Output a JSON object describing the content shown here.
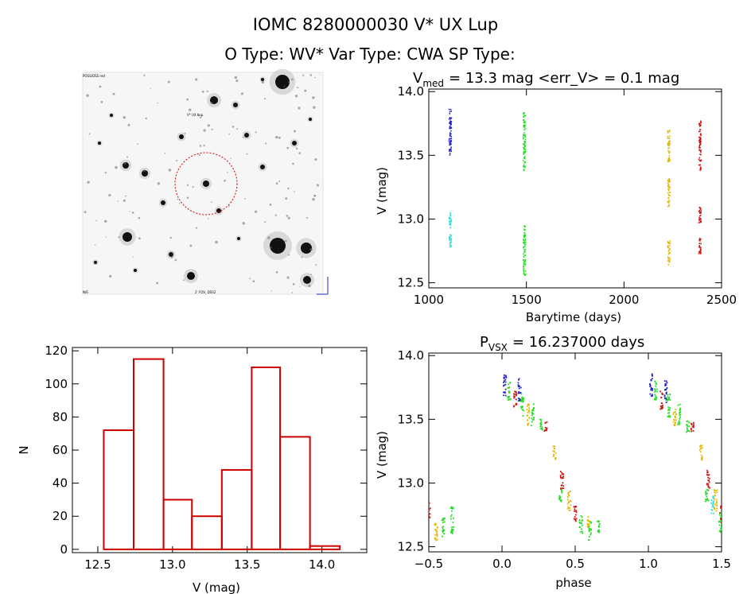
{
  "header": {
    "title": "IOMC 8280000030    V* UX Lup",
    "subtitle": "O Type: WV*  Var Type: CWA  SP Type:"
  },
  "image_panel": {
    "label_top_left": "POSS/DSS red",
    "label_target": "V* UX Lup",
    "label_bottom_left": "N/E",
    "label_bottom_center": "2' FOV, DSS2"
  },
  "colors": {
    "axis": "#000000",
    "histogram": "#cc0000",
    "season1": "#2222cc",
    "season2": "#22dd22",
    "season3": "#e6b800",
    "season4": "#cc1111",
    "cyan": "#33dddd"
  },
  "chart_data": [
    {
      "id": "lightcurve",
      "type": "scatter",
      "title_prefix": "V",
      "title_sub": "med",
      "title_rest": "= 13.3 mag <err_V> = 0.1 mag",
      "xlabel": "Barytime (days)",
      "ylabel": "V (mag)",
      "xlim": [
        1000,
        2500
      ],
      "ylim": [
        14.02,
        12.46
      ],
      "xticks": [
        "1000",
        "1500",
        "2000",
        "2500"
      ],
      "yticks": [
        "12.5",
        "13.0",
        "13.5",
        "14.0"
      ],
      "series": [
        {
          "name": "cyan",
          "x_center": 1110,
          "y_ranges": [
            [
              12.77,
              12.88
            ],
            [
              12.93,
              13.05
            ]
          ]
        },
        {
          "name": "blue",
          "x_center": 1110,
          "y_ranges": [
            [
              13.5,
              13.87
            ]
          ]
        },
        {
          "name": "green",
          "x_center": 1490,
          "y_ranges": [
            [
              12.55,
              12.95
            ],
            [
              13.38,
              13.85
            ]
          ]
        },
        {
          "name": "yellow",
          "x_center": 2230,
          "y_ranges": [
            [
              12.64,
              12.83
            ],
            [
              13.08,
              13.32
            ],
            [
              13.45,
              13.72
            ]
          ]
        },
        {
          "name": "red",
          "x_center": 2390,
          "y_ranges": [
            [
              12.72,
              12.85
            ],
            [
              12.97,
              13.1
            ],
            [
              13.38,
              13.77
            ]
          ]
        }
      ]
    },
    {
      "id": "histogram",
      "type": "bar",
      "xlabel": "V (mag)",
      "ylabel": "N",
      "xlim": [
        12.33,
        14.3
      ],
      "ylim": [
        -2,
        122
      ],
      "xticks": [
        "12.5",
        "13.0",
        "13.5",
        "14.0"
      ],
      "yticks": [
        "0",
        "20",
        "40",
        "60",
        "80",
        "100",
        "120"
      ],
      "bin_edges": [
        12.54,
        12.74,
        12.94,
        13.13,
        13.33,
        13.53,
        13.72,
        13.92,
        14.12
      ],
      "values": [
        72,
        115,
        30,
        20,
        48,
        110,
        68,
        2
      ]
    },
    {
      "id": "phased",
      "type": "scatter",
      "title_prefix": "P",
      "title_sub": "VSX",
      "title_rest": "= 16.237000 days",
      "xlabel": "phase",
      "ylabel": "V (mag)",
      "xlim": [
        -0.5,
        1.5
      ],
      "ylim": [
        14.02,
        12.46
      ],
      "xticks": [
        "−0.5",
        "0.0",
        "0.5",
        "1.0",
        "1.5"
      ],
      "yticks": [
        "12.5",
        "13.0",
        "13.5",
        "14.0"
      ],
      "clusters": [
        {
          "phase": -0.45,
          "ymin": 12.55,
          "ymax": 12.73,
          "color": "yellow"
        },
        {
          "phase": -0.4,
          "ymin": 12.55,
          "ymax": 12.73,
          "color": "green"
        },
        {
          "phase": -0.34,
          "ymin": 12.6,
          "ymax": 12.82,
          "color": "green"
        },
        {
          "phase": -0.5,
          "ymin": 12.72,
          "ymax": 12.85,
          "color": "red"
        },
        {
          "phase": 0.02,
          "ymin": 13.68,
          "ymax": 13.86,
          "color": "blue"
        },
        {
          "phase": 0.05,
          "ymin": 13.65,
          "ymax": 13.8,
          "color": "green"
        },
        {
          "phase": 0.09,
          "ymin": 13.58,
          "ymax": 13.72,
          "color": "red"
        },
        {
          "phase": 0.12,
          "ymin": 13.63,
          "ymax": 13.82,
          "color": "blue"
        },
        {
          "phase": 0.14,
          "ymin": 13.5,
          "ymax": 13.7,
          "color": "green"
        },
        {
          "phase": 0.18,
          "ymin": 13.45,
          "ymax": 13.62,
          "color": "yellow"
        },
        {
          "phase": 0.21,
          "ymin": 13.45,
          "ymax": 13.62,
          "color": "green"
        },
        {
          "phase": 0.27,
          "ymin": 13.4,
          "ymax": 13.5,
          "color": "green"
        },
        {
          "phase": 0.3,
          "ymin": 13.4,
          "ymax": 13.48,
          "color": "red"
        },
        {
          "phase": 0.36,
          "ymin": 13.18,
          "ymax": 13.3,
          "color": "yellow"
        },
        {
          "phase": 0.41,
          "ymin": 12.93,
          "ymax": 13.1,
          "color": "red"
        },
        {
          "phase": 0.4,
          "ymin": 12.85,
          "ymax": 12.95,
          "color": "green"
        },
        {
          "phase": 0.46,
          "ymin": 12.78,
          "ymax": 12.95,
          "color": "yellow"
        },
        {
          "phase": 0.5,
          "ymin": 12.68,
          "ymax": 12.82,
          "color": "red"
        },
        {
          "phase": 0.54,
          "ymin": 12.6,
          "ymax": 12.75,
          "color": "green"
        },
        {
          "phase": 0.59,
          "ymin": 12.65,
          "ymax": 12.75,
          "color": "yellow"
        },
        {
          "phase": 0.6,
          "ymin": 12.55,
          "ymax": 12.7,
          "color": "green"
        },
        {
          "phase": 0.66,
          "ymin": 12.6,
          "ymax": 12.72,
          "color": "green"
        },
        {
          "phase": 1.02,
          "ymin": 13.68,
          "ymax": 13.86,
          "color": "blue"
        },
        {
          "phase": 1.05,
          "ymin": 13.65,
          "ymax": 13.8,
          "color": "green"
        },
        {
          "phase": 1.09,
          "ymin": 13.58,
          "ymax": 13.72,
          "color": "red"
        },
        {
          "phase": 1.12,
          "ymin": 13.63,
          "ymax": 13.82,
          "color": "blue"
        },
        {
          "phase": 1.14,
          "ymin": 13.5,
          "ymax": 13.7,
          "color": "green"
        },
        {
          "phase": 1.18,
          "ymin": 13.45,
          "ymax": 13.62,
          "color": "yellow"
        },
        {
          "phase": 1.21,
          "ymin": 13.45,
          "ymax": 13.62,
          "color": "green"
        },
        {
          "phase": 1.27,
          "ymin": 13.4,
          "ymax": 13.5,
          "color": "green"
        },
        {
          "phase": 1.3,
          "ymin": 13.4,
          "ymax": 13.48,
          "color": "red"
        },
        {
          "phase": 1.36,
          "ymin": 13.18,
          "ymax": 13.3,
          "color": "yellow"
        },
        {
          "phase": 1.41,
          "ymin": 12.93,
          "ymax": 13.1,
          "color": "red"
        },
        {
          "phase": 1.4,
          "ymin": 12.85,
          "ymax": 12.95,
          "color": "green"
        },
        {
          "phase": 1.44,
          "ymin": 12.75,
          "ymax": 12.9,
          "color": "cyan"
        },
        {
          "phase": 1.46,
          "ymin": 12.78,
          "ymax": 12.95,
          "color": "yellow"
        },
        {
          "phase": 1.49,
          "ymin": 12.6,
          "ymax": 12.8,
          "color": "green"
        },
        {
          "phase": 1.5,
          "ymin": 12.68,
          "ymax": 12.82,
          "color": "red"
        }
      ]
    }
  ]
}
